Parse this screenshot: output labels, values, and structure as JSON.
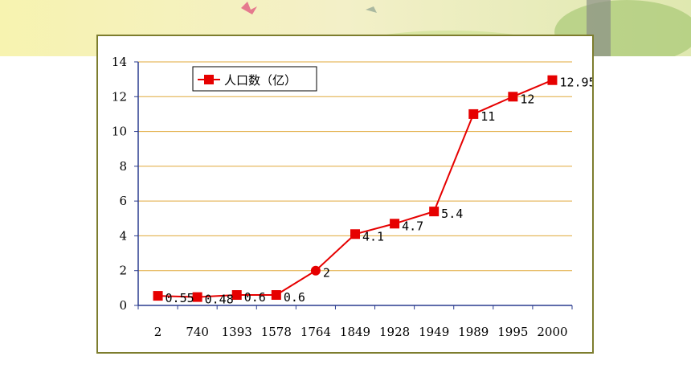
{
  "chart_data": {
    "type": "line",
    "categories": [
      "2",
      "740",
      "1393",
      "1578",
      "1764",
      "1849",
      "1928",
      "1949",
      "1989",
      "1995",
      "2000"
    ],
    "series": [
      {
        "name": "人口数（亿）",
        "values": [
          0.55,
          0.48,
          0.6,
          0.6,
          2,
          4.1,
          4.7,
          5.4,
          11,
          12,
          12.95
        ],
        "labels": [
          "0.55",
          "0.48",
          "0.6",
          "0.6",
          "2",
          "4.1",
          "4.7",
          "5.4",
          "11",
          "12",
          "12.95"
        ],
        "color": "#e60000",
        "markers": [
          "square",
          "square",
          "square",
          "square",
          "circle",
          "square",
          "square",
          "square",
          "square",
          "square",
          "square"
        ]
      }
    ],
    "ylim": [
      0,
      14
    ],
    "yticks": [
      "0",
      "2",
      "4",
      "6",
      "8",
      "10",
      "12",
      "14"
    ],
    "grid": true,
    "grid_color": "#e0a93a",
    "legend_position": "top-left"
  }
}
